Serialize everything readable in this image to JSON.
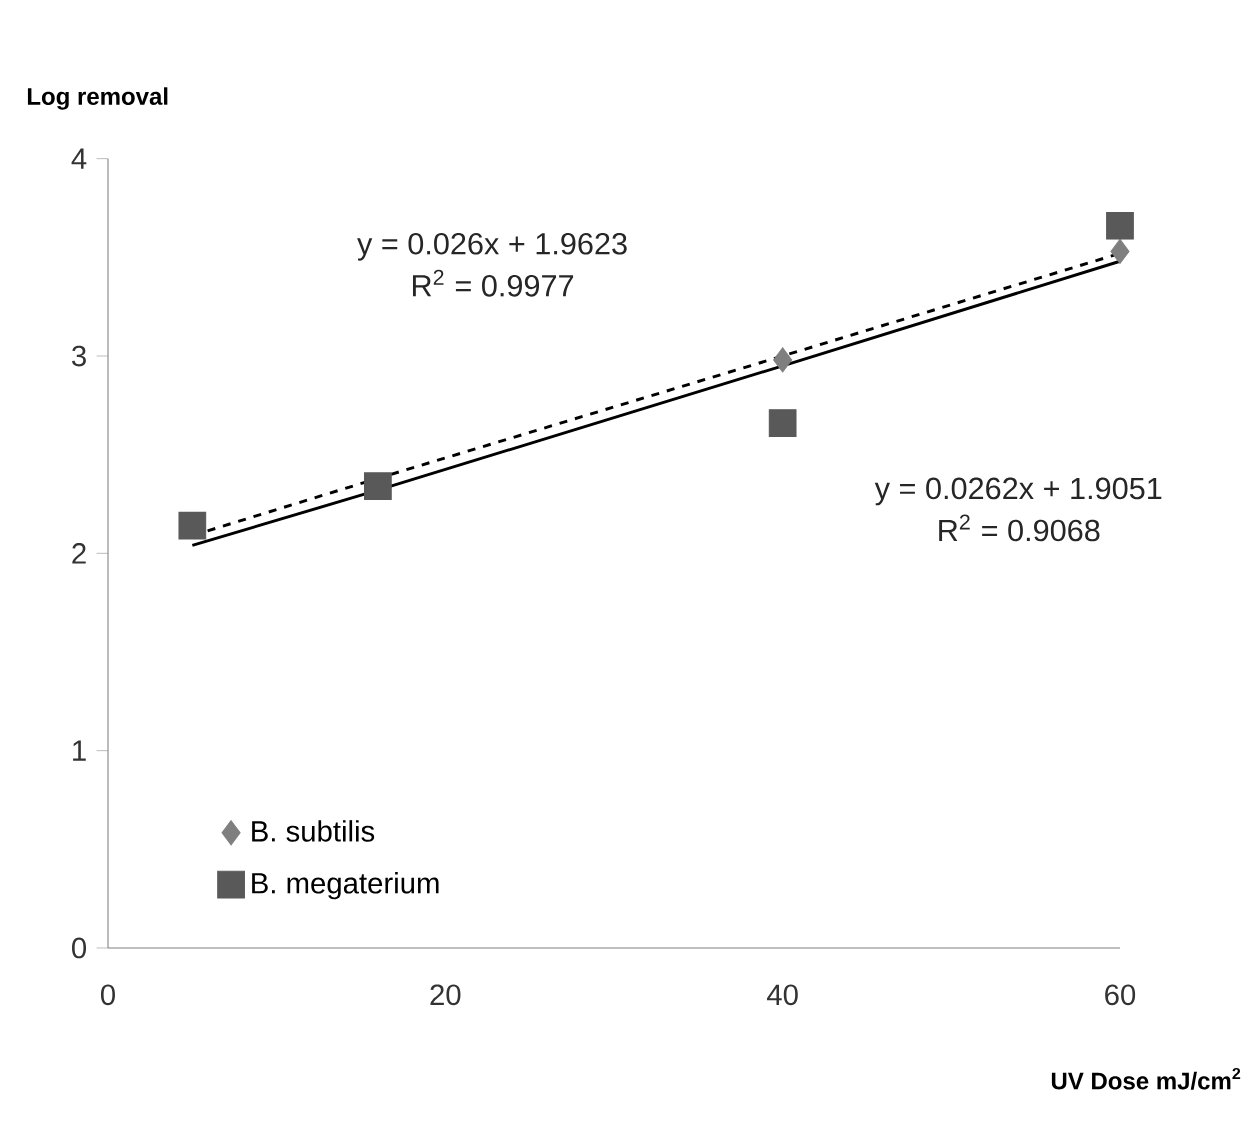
{
  "chart_data": {
    "type": "scatter",
    "xlabel": "UV Dose mJ/cm$^{2}$",
    "ylabel": "Log removal",
    "xlim": [
      0,
      60
    ],
    "ylim": [
      0,
      4
    ],
    "xticks": [
      0,
      20,
      40,
      60
    ],
    "yticks": [
      0,
      1,
      2,
      3,
      4
    ],
    "grid": false,
    "legend": "bottom left",
    "x": [
      5,
      16,
      40,
      60
    ],
    "series": [
      {
        "name": "B. subtilis",
        "color": "#7f7f7f",
        "marker": "diamond",
        "values": [
          null,
          null,
          2.98,
          3.53
        ]
      },
      {
        "name": "B. megaterium",
        "color": "#595959",
        "marker": "square",
        "values": [
          2.14,
          2.34,
          2.66,
          3.66
        ]
      },
      {
        "type": "line",
        "color": "#000000",
        "line_style": "dashed",
        "marker": "none",
        "values": [
          2.09,
          2.38,
          3.0,
          3.52
        ]
      },
      {
        "type": "line",
        "color": "#000000",
        "line_style": "solid",
        "marker": "none",
        "values": [
          2.04,
          2.32,
          2.95,
          3.48
        ]
      }
    ],
    "annotations": [
      "y = 0.026x + 1.9623",
      "R$^{2}$ = 0.9977",
      "y = 0.0262x + 1.9051",
      "R$^{2}$ = 0.9068"
    ]
  }
}
